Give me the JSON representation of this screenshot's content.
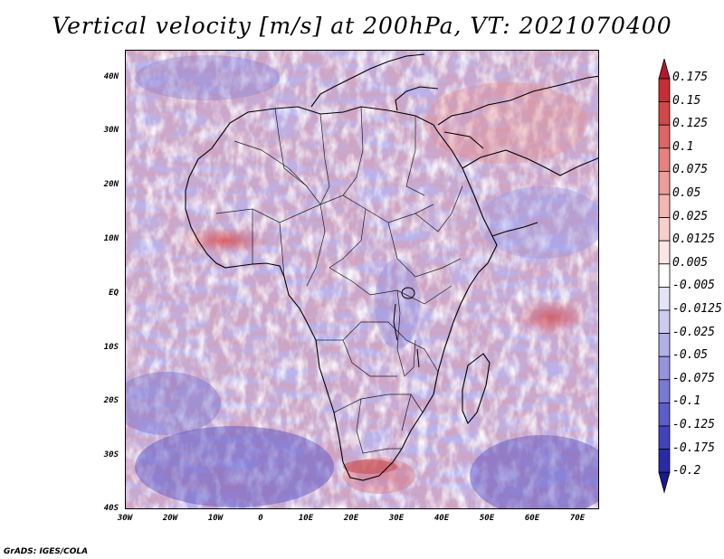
{
  "title": "Vertical velocity [m/s] at 200hPa, VT: 2021070400",
  "credit": "GrADS: IGES/COLA",
  "map": {
    "lat_labels": [
      "40N",
      "30N",
      "20N",
      "10N",
      "EQ",
      "10S",
      "20S",
      "30S",
      "40S"
    ],
    "lon_labels": [
      "30W",
      "20W",
      "10W",
      "0",
      "10E",
      "20E",
      "30E",
      "40E",
      "50E",
      "60E",
      "70E"
    ],
    "lat_range": [
      -40,
      45
    ],
    "lon_range": [
      -30,
      75
    ]
  },
  "colorbar": {
    "labels": [
      "0.175",
      "0.15",
      "0.125",
      "0.1",
      "0.075",
      "0.05",
      "0.025",
      "0.0125",
      "0.005",
      "-0.005",
      "-0.0125",
      "-0.025",
      "-0.05",
      "-0.075",
      "-0.1",
      "-0.125",
      "-0.175",
      "-0.2"
    ],
    "colors": [
      "#b2182b",
      "#c62e36",
      "#d24848",
      "#df6464",
      "#e88080",
      "#ef9c9a",
      "#f4b6b2",
      "#f8cfcc",
      "#fbe6e4",
      "#ffffff",
      "#e4e4f6",
      "#ccccef",
      "#b0b0e8",
      "#9494df",
      "#7878d5",
      "#5c5cca",
      "#4242bd",
      "#2a2aa8",
      "#1a1a90"
    ]
  }
}
